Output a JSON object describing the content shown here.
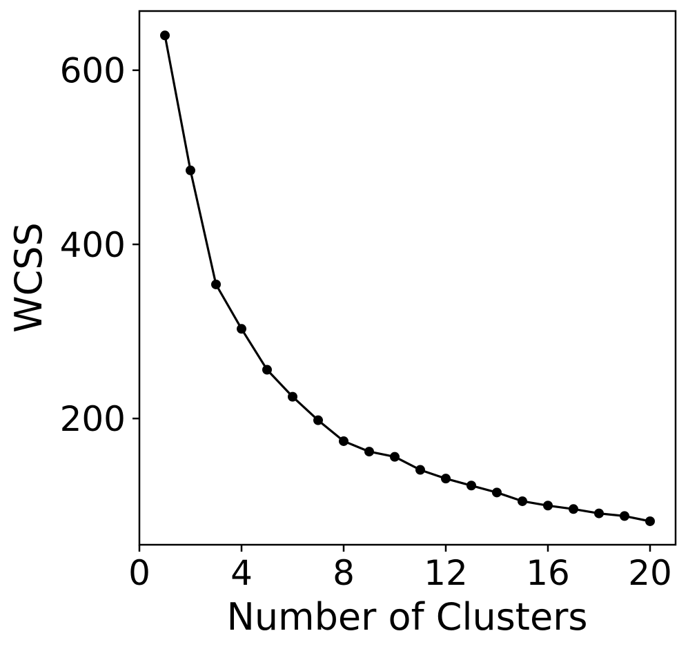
{
  "chart_data": {
    "type": "line",
    "title": "",
    "xlabel": "Number of Clusters",
    "ylabel": "WCSS",
    "xlim": [
      0,
      21
    ],
    "ylim": [
      55,
      668
    ],
    "xticks": [
      0,
      4,
      8,
      12,
      16,
      20
    ],
    "yticks": [
      200,
      400,
      600
    ],
    "grid": false,
    "legend": "none",
    "colors": {
      "line": "#000000",
      "marker": "#000000"
    },
    "series": [
      {
        "x": [
          1,
          2,
          3,
          4,
          5,
          6,
          7,
          8,
          9,
          10,
          11,
          12,
          13,
          14,
          15,
          16,
          17,
          18,
          19,
          20
        ],
        "values": [
          640,
          485,
          354,
          303,
          256,
          225,
          198,
          174,
          162,
          156,
          141,
          131,
          123,
          115,
          105,
          100,
          96,
          91,
          88,
          82
        ]
      }
    ]
  }
}
